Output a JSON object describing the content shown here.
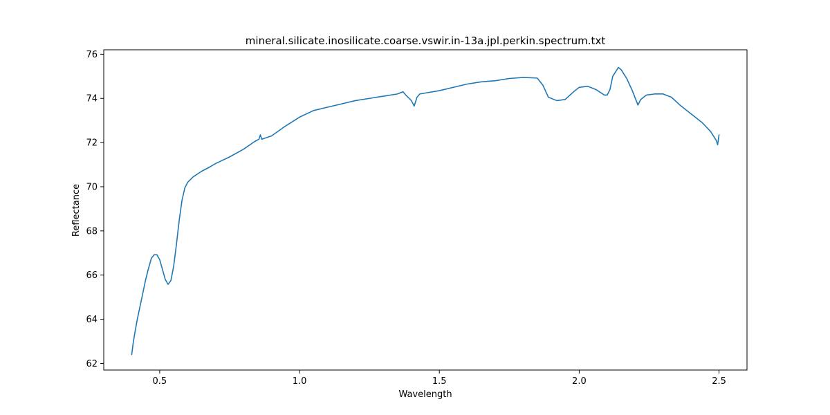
{
  "chart_data": {
    "type": "line",
    "title": "mineral.silicate.inosilicate.coarse.vswir.in-13a.jpl.perkin.spectrum.txt",
    "xlabel": "Wavelength",
    "ylabel": "Reflectance",
    "xlim": [
      0.3,
      2.6
    ],
    "ylim": [
      61.7,
      76.2
    ],
    "xticks": [
      0.5,
      1.0,
      1.5,
      2.0,
      2.5
    ],
    "xtick_labels": [
      "0.5",
      "1.0",
      "1.5",
      "2.0",
      "2.5"
    ],
    "yticks": [
      62,
      64,
      66,
      68,
      70,
      72,
      74,
      76
    ],
    "ytick_labels": [
      "62",
      "64",
      "66",
      "68",
      "70",
      "72",
      "74",
      "76"
    ],
    "grid": false,
    "line_color": "#1f77b4",
    "series": [
      {
        "points": [
          [
            0.4,
            62.4
          ],
          [
            0.405,
            62.9
          ],
          [
            0.41,
            63.3
          ],
          [
            0.42,
            64.0
          ],
          [
            0.43,
            64.6
          ],
          [
            0.44,
            65.2
          ],
          [
            0.45,
            65.8
          ],
          [
            0.46,
            66.3
          ],
          [
            0.47,
            66.75
          ],
          [
            0.48,
            66.92
          ],
          [
            0.49,
            66.92
          ],
          [
            0.5,
            66.7
          ],
          [
            0.51,
            66.25
          ],
          [
            0.52,
            65.8
          ],
          [
            0.53,
            65.58
          ],
          [
            0.54,
            65.75
          ],
          [
            0.55,
            66.4
          ],
          [
            0.56,
            67.4
          ],
          [
            0.57,
            68.5
          ],
          [
            0.58,
            69.4
          ],
          [
            0.59,
            69.95
          ],
          [
            0.6,
            70.2
          ],
          [
            0.62,
            70.45
          ],
          [
            0.65,
            70.7
          ],
          [
            0.68,
            70.9
          ],
          [
            0.7,
            71.05
          ],
          [
            0.75,
            71.35
          ],
          [
            0.8,
            71.7
          ],
          [
            0.84,
            72.05
          ],
          [
            0.855,
            72.15
          ],
          [
            0.86,
            72.35
          ],
          [
            0.865,
            72.15
          ],
          [
            0.9,
            72.3
          ],
          [
            0.95,
            72.75
          ],
          [
            1.0,
            73.15
          ],
          [
            1.05,
            73.45
          ],
          [
            1.1,
            73.6
          ],
          [
            1.15,
            73.75
          ],
          [
            1.2,
            73.9
          ],
          [
            1.25,
            74.0
          ],
          [
            1.3,
            74.1
          ],
          [
            1.35,
            74.2
          ],
          [
            1.37,
            74.3
          ],
          [
            1.38,
            74.15
          ],
          [
            1.4,
            73.9
          ],
          [
            1.41,
            73.65
          ],
          [
            1.42,
            74.05
          ],
          [
            1.43,
            74.2
          ],
          [
            1.5,
            74.35
          ],
          [
            1.55,
            74.5
          ],
          [
            1.6,
            74.65
          ],
          [
            1.65,
            74.75
          ],
          [
            1.7,
            74.8
          ],
          [
            1.75,
            74.9
          ],
          [
            1.8,
            74.95
          ],
          [
            1.85,
            74.92
          ],
          [
            1.87,
            74.6
          ],
          [
            1.89,
            74.05
          ],
          [
            1.92,
            73.9
          ],
          [
            1.95,
            73.95
          ],
          [
            1.98,
            74.3
          ],
          [
            2.0,
            74.5
          ],
          [
            2.03,
            74.55
          ],
          [
            2.06,
            74.4
          ],
          [
            2.09,
            74.15
          ],
          [
            2.1,
            74.15
          ],
          [
            2.11,
            74.4
          ],
          [
            2.12,
            75.0
          ],
          [
            2.14,
            75.4
          ],
          [
            2.15,
            75.3
          ],
          [
            2.17,
            74.9
          ],
          [
            2.19,
            74.35
          ],
          [
            2.21,
            73.7
          ],
          [
            2.22,
            73.95
          ],
          [
            2.24,
            74.15
          ],
          [
            2.27,
            74.2
          ],
          [
            2.3,
            74.2
          ],
          [
            2.33,
            74.05
          ],
          [
            2.36,
            73.7
          ],
          [
            2.4,
            73.3
          ],
          [
            2.44,
            72.9
          ],
          [
            2.47,
            72.5
          ],
          [
            2.49,
            72.1
          ],
          [
            2.495,
            71.9
          ],
          [
            2.5,
            72.35
          ]
        ]
      }
    ]
  }
}
